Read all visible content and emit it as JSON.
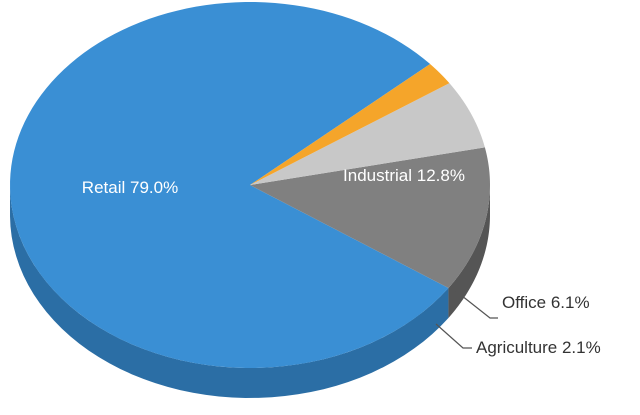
{
  "chart_data": {
    "type": "pie",
    "style": "3d",
    "slices": [
      {
        "name": "Retail",
        "value": 79.0,
        "label": "Retail 79.0%",
        "color": "#3a8fd4",
        "side_color": "#2b6ea5"
      },
      {
        "name": "Industrial",
        "value": 12.8,
        "label": "Industrial 12.8%",
        "color": "#808080",
        "side_color": "#555555"
      },
      {
        "name": "Office",
        "value": 6.1,
        "label": "Office 6.1%",
        "color": "#c8c8c8",
        "side_color": "#8a8a8a"
      },
      {
        "name": "Agriculture",
        "value": 2.1,
        "label": "Agriculture 2.1%",
        "color": "#f5a52a",
        "side_color": "#c47d13"
      }
    ],
    "legend": "none",
    "label_placement": "on-slice and leader lines"
  }
}
